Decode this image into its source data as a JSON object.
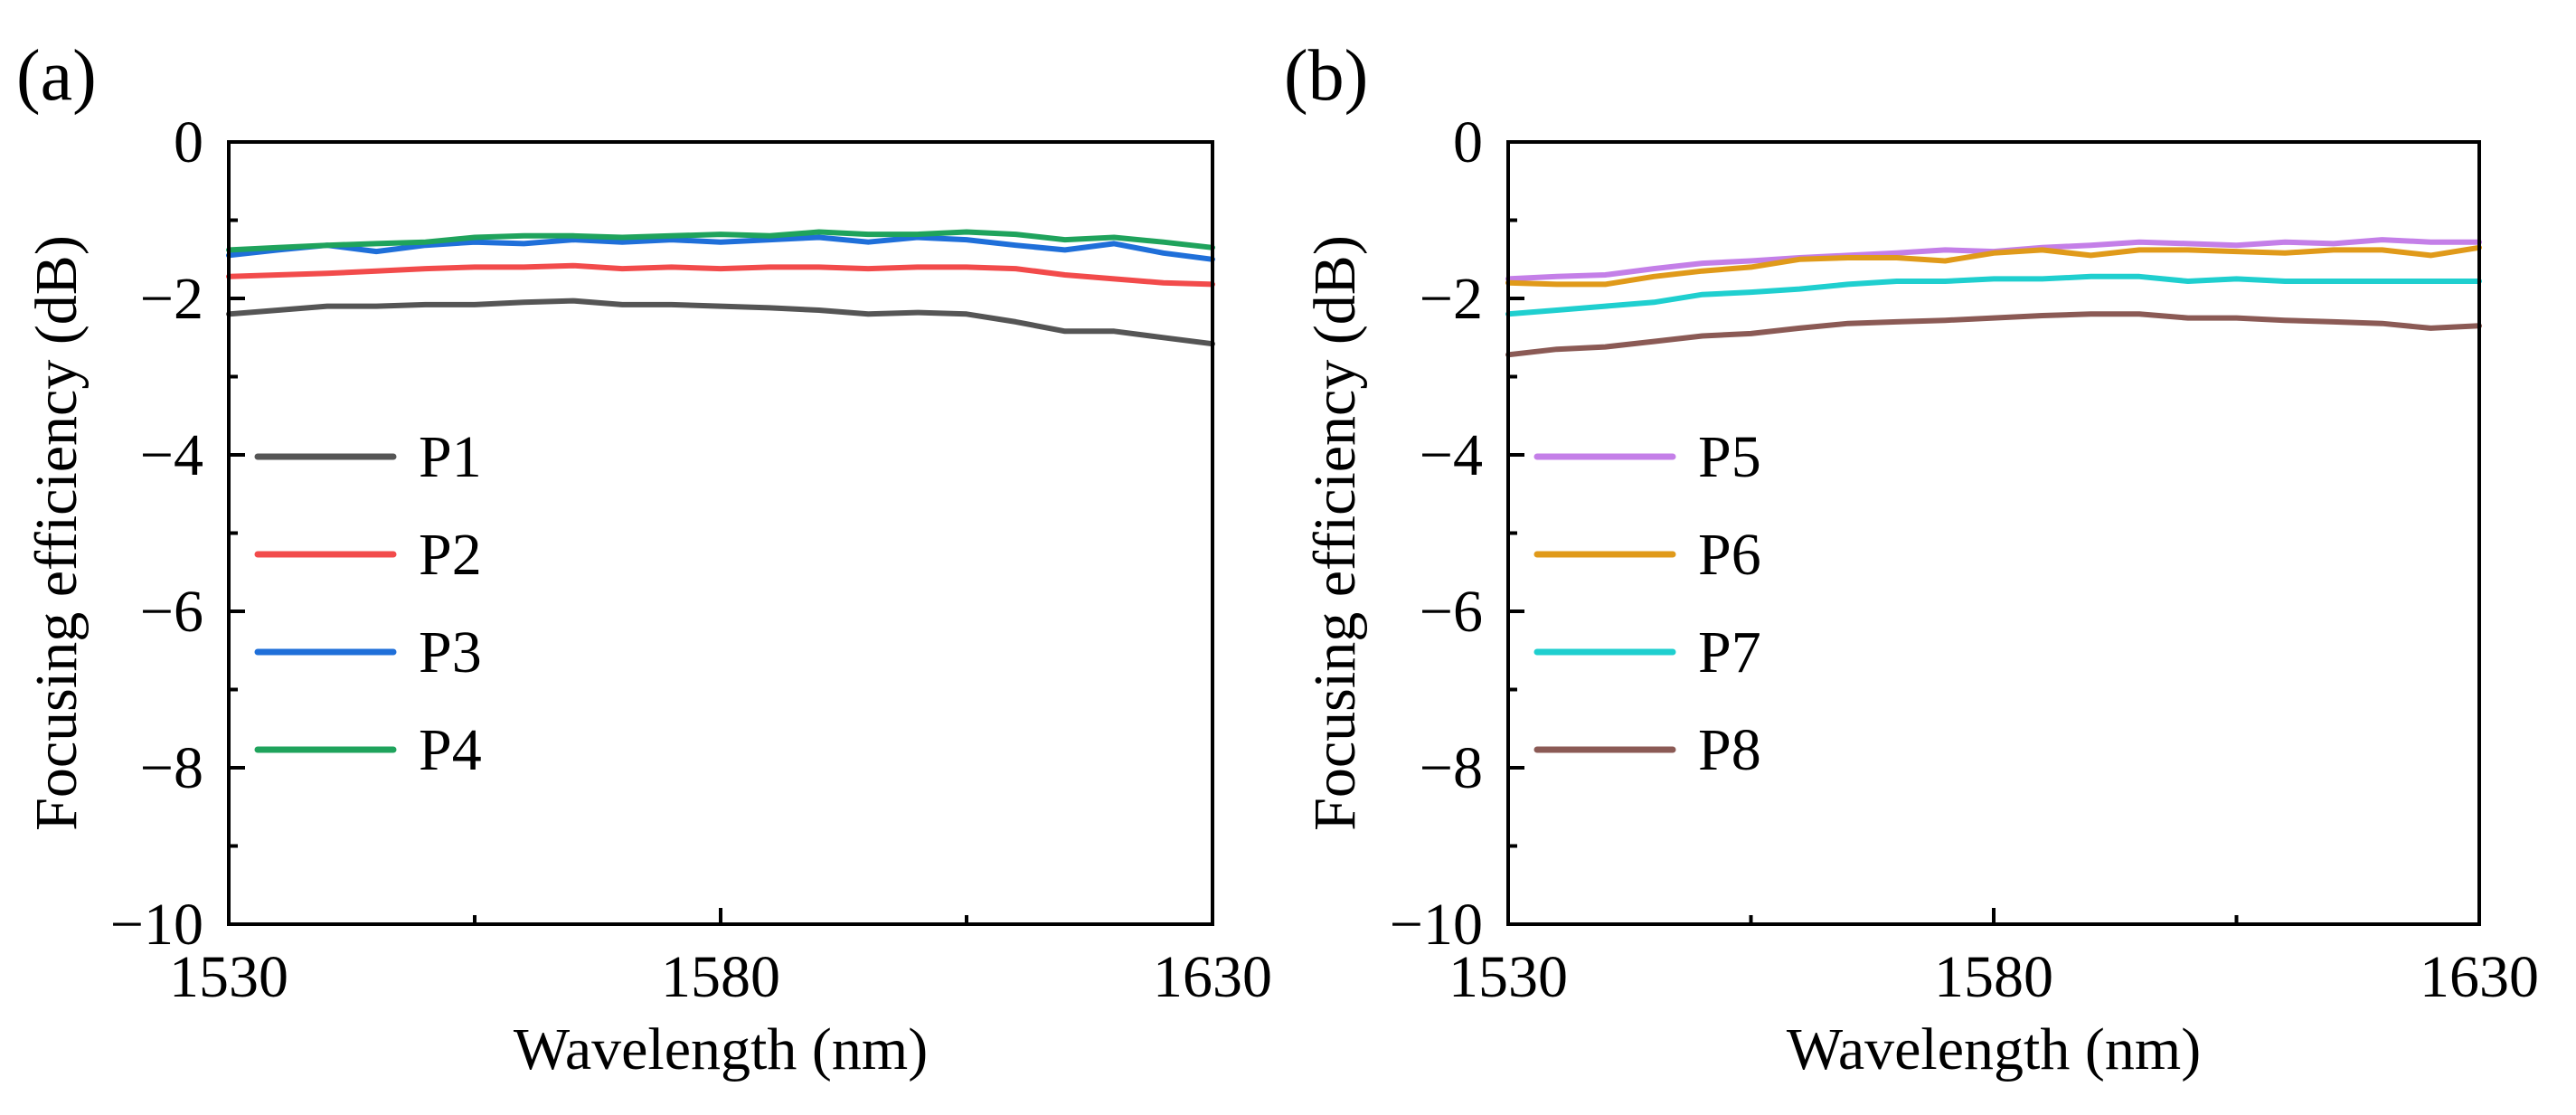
{
  "chart_data": [
    {
      "panel_label": "(a)",
      "type": "line",
      "xlabel": "Wavelength (nm)",
      "ylabel": "Focusing efficiency (dB)",
      "xlim": [
        1530,
        1630
      ],
      "ylim": [
        -10,
        0
      ],
      "x_ticks": [
        1530,
        1580,
        1630
      ],
      "x_tick_labels": [
        "1530",
        "1580",
        "1630"
      ],
      "y_ticks": [
        0,
        -2,
        -4,
        -6,
        -8,
        -10
      ],
      "y_tick_labels": [
        "0",
        "−2",
        "−4",
        "−6",
        "−8",
        "−10"
      ],
      "legend_position": "middle-left",
      "x": [
        1530,
        1535,
        1540,
        1545,
        1550,
        1555,
        1560,
        1565,
        1570,
        1575,
        1580,
        1585,
        1590,
        1595,
        1600,
        1605,
        1610,
        1615,
        1620,
        1625,
        1630
      ],
      "series": [
        {
          "name": "P1",
          "color": "#555555",
          "values": [
            -2.2,
            -2.15,
            -2.1,
            -2.1,
            -2.08,
            -2.08,
            -2.05,
            -2.03,
            -2.08,
            -2.08,
            -2.1,
            -2.12,
            -2.15,
            -2.2,
            -2.18,
            -2.2,
            -2.3,
            -2.42,
            -2.42,
            -2.5,
            -2.58
          ]
        },
        {
          "name": "P2",
          "color": "#f24b4b",
          "values": [
            -1.72,
            -1.7,
            -1.68,
            -1.65,
            -1.62,
            -1.6,
            -1.6,
            -1.58,
            -1.62,
            -1.6,
            -1.62,
            -1.6,
            -1.6,
            -1.62,
            -1.6,
            -1.6,
            -1.62,
            -1.7,
            -1.75,
            -1.8,
            -1.82
          ]
        },
        {
          "name": "P3",
          "color": "#1f6fd9",
          "values": [
            -1.45,
            -1.38,
            -1.32,
            -1.4,
            -1.32,
            -1.28,
            -1.3,
            -1.25,
            -1.28,
            -1.25,
            -1.28,
            -1.25,
            -1.22,
            -1.28,
            -1.22,
            -1.25,
            -1.32,
            -1.38,
            -1.3,
            -1.42,
            -1.5
          ]
        },
        {
          "name": "P4",
          "color": "#1fa35c",
          "values": [
            -1.38,
            -1.35,
            -1.32,
            -1.3,
            -1.28,
            -1.22,
            -1.2,
            -1.2,
            -1.22,
            -1.2,
            -1.18,
            -1.2,
            -1.15,
            -1.18,
            -1.18,
            -1.15,
            -1.18,
            -1.25,
            -1.22,
            -1.28,
            -1.35
          ]
        }
      ]
    },
    {
      "panel_label": "(b)",
      "type": "line",
      "xlabel": "Wavelength (nm)",
      "ylabel": "Focusing efficiency (dB)",
      "xlim": [
        1530,
        1630
      ],
      "ylim": [
        -10,
        0
      ],
      "x_ticks": [
        1530,
        1580,
        1630
      ],
      "x_tick_labels": [
        "1530",
        "1580",
        "1630"
      ],
      "y_ticks": [
        0,
        -2,
        -4,
        -6,
        -8,
        -10
      ],
      "y_tick_labels": [
        "0",
        "−2",
        "−4",
        "−6",
        "−8",
        "−10"
      ],
      "legend_position": "middle-left",
      "x": [
        1530,
        1535,
        1540,
        1545,
        1550,
        1555,
        1560,
        1565,
        1570,
        1575,
        1580,
        1585,
        1590,
        1595,
        1600,
        1605,
        1610,
        1615,
        1620,
        1625,
        1630
      ],
      "series": [
        {
          "name": "P5",
          "color": "#c47fe8",
          "values": [
            -1.75,
            -1.72,
            -1.7,
            -1.62,
            -1.55,
            -1.52,
            -1.48,
            -1.45,
            -1.42,
            -1.38,
            -1.4,
            -1.35,
            -1.32,
            -1.28,
            -1.3,
            -1.32,
            -1.28,
            -1.3,
            -1.25,
            -1.28,
            -1.28
          ]
        },
        {
          "name": "P6",
          "color": "#e09a1a",
          "values": [
            -1.8,
            -1.82,
            -1.82,
            -1.72,
            -1.65,
            -1.6,
            -1.5,
            -1.48,
            -1.48,
            -1.52,
            -1.42,
            -1.38,
            -1.45,
            -1.38,
            -1.38,
            -1.4,
            -1.42,
            -1.38,
            -1.38,
            -1.45,
            -1.35
          ]
        },
        {
          "name": "P7",
          "color": "#1fcfcf",
          "values": [
            -2.2,
            -2.15,
            -2.1,
            -2.05,
            -1.95,
            -1.92,
            -1.88,
            -1.82,
            -1.78,
            -1.78,
            -1.75,
            -1.75,
            -1.72,
            -1.72,
            -1.78,
            -1.75,
            -1.78,
            -1.78,
            -1.78,
            -1.78,
            -1.78
          ]
        },
        {
          "name": "P8",
          "color": "#8b5a55",
          "values": [
            -2.72,
            -2.65,
            -2.62,
            -2.55,
            -2.48,
            -2.45,
            -2.38,
            -2.32,
            -2.3,
            -2.28,
            -2.25,
            -2.22,
            -2.2,
            -2.2,
            -2.25,
            -2.25,
            -2.28,
            -2.3,
            -2.32,
            -2.38,
            -2.35
          ]
        }
      ]
    }
  ]
}
